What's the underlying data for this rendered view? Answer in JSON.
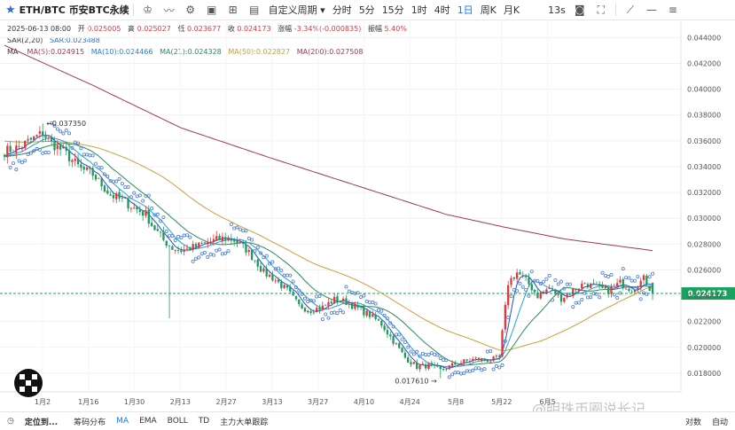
{
  "toolbar": {
    "symbol": "ETH/BTC 币安BTC永续",
    "custom_period": "自定义周期",
    "timeframes": [
      "分时",
      "5分",
      "15分",
      "1时",
      "4时",
      "1日",
      "周K",
      "月K"
    ],
    "active_timeframe": "1日",
    "refresh": "13s"
  },
  "info": {
    "date": "2025-06-13 08:00",
    "open_label": "开",
    "open": "0.025005",
    "high_label": "高",
    "high": "0.025027",
    "low_label": "低",
    "low": "0.023677",
    "close_label": "收",
    "close": "0.024173",
    "change_label": "涨幅",
    "change": "-3.34%(-0.000835)",
    "amp_label": "振幅",
    "amp": "5.40%",
    "sar_label": "SAR(2,20)",
    "sar_value": "SAR:0.023488",
    "ma_label": "MA",
    "ma5": "MA(5):0.024915",
    "ma10": "MA(10):0.024466",
    "ma21": "MA(21):0.024328",
    "ma50": "MA(50):0.022827",
    "ma200": "MA(200):0.027508"
  },
  "bottombar": {
    "locate": "定位到...",
    "items": [
      "筹码分布",
      "MA",
      "EMA",
      "BOLL",
      "TD",
      "主力大单跟踪"
    ],
    "active": "MA",
    "right1": "对数",
    "right2": "自动"
  },
  "watermark": "@明珠币圈说长记",
  "colors": {
    "up": "#e0383e",
    "down": "#1f9a5a",
    "ma5": "#1f4fd1",
    "ma10": "#2a9fd6",
    "ma21": "#2e8b57",
    "ma50": "#c9a13a",
    "ma200": "#a0394a",
    "sar": "#4a7fd6",
    "price_tag": "#19a15f"
  },
  "chart_data": {
    "type": "candlestick",
    "x_tick_labels": [
      "1月2",
      "1月16",
      "1月30",
      "2月13",
      "2月27",
      "3月13",
      "3月27",
      "4月10",
      "4月24",
      "5月8",
      "5月22",
      "6月5"
    ],
    "y_ticks": [
      0.018,
      0.02,
      0.022,
      0.024,
      0.026,
      0.028,
      0.03,
      0.032,
      0.034,
      0.036,
      0.038,
      0.04,
      0.042,
      0.044
    ],
    "y_tick_labels": [
      "0.018000",
      "0.020000",
      "0.022000",
      "0.024000",
      "0.026000",
      "0.028000",
      "0.030000",
      "0.032000",
      "0.034000",
      "0.036000",
      "0.038000",
      "0.040000",
      "0.042000",
      "0.044000"
    ],
    "ylim": [
      0.01655,
      0.0454
    ],
    "current_price": 0.024173,
    "current_price_label": "0.024173",
    "annotations": [
      {
        "text": "0.037350",
        "value": 0.03735
      },
      {
        "text": "0.017610",
        "value": 0.01761
      }
    ],
    "close_anchors": [
      [
        0,
        0.0352
      ],
      [
        5,
        0.0355
      ],
      [
        10,
        0.0362
      ],
      [
        13,
        0.0366
      ],
      [
        16,
        0.0358
      ],
      [
        20,
        0.0352
      ],
      [
        26,
        0.0338
      ],
      [
        30,
        0.0334
      ],
      [
        36,
        0.0318
      ],
      [
        40,
        0.0314
      ],
      [
        44,
        0.0308
      ],
      [
        48,
        0.0303
      ],
      [
        50,
        0.0295
      ],
      [
        54,
        0.0283
      ],
      [
        57,
        0.0277
      ],
      [
        60,
        0.0275
      ],
      [
        65,
        0.0278
      ],
      [
        70,
        0.0282
      ],
      [
        75,
        0.0285
      ],
      [
        78,
        0.0283
      ],
      [
        82,
        0.0276
      ],
      [
        85,
        0.0268
      ],
      [
        88,
        0.0258
      ],
      [
        91,
        0.0254
      ],
      [
        96,
        0.0244
      ],
      [
        100,
        0.0232
      ],
      [
        104,
        0.0229
      ],
      [
        108,
        0.0231
      ],
      [
        112,
        0.0237
      ],
      [
        116,
        0.0235
      ],
      [
        120,
        0.023
      ],
      [
        124,
        0.0225
      ],
      [
        128,
        0.0218
      ],
      [
        132,
        0.0205
      ],
      [
        136,
        0.0192
      ],
      [
        140,
        0.0185
      ],
      [
        144,
        0.0186
      ],
      [
        148,
        0.0182
      ],
      [
        150,
        0.0184
      ],
      [
        153,
        0.0187
      ],
      [
        156,
        0.0189
      ],
      [
        160,
        0.0191
      ],
      [
        165,
        0.019
      ],
      [
        168,
        0.0192
      ],
      [
        171,
        0.025
      ],
      [
        174,
        0.0258
      ],
      [
        177,
        0.0252
      ],
      [
        181,
        0.024
      ],
      [
        185,
        0.0246
      ],
      [
        189,
        0.0238
      ],
      [
        193,
        0.0244
      ],
      [
        197,
        0.025
      ],
      [
        201,
        0.0246
      ],
      [
        205,
        0.0244
      ],
      [
        209,
        0.025
      ],
      [
        213,
        0.0245
      ],
      [
        217,
        0.0253
      ],
      [
        218,
        0.025
      ],
      [
        220,
        0.024173
      ]
    ],
    "ma200_anchors": [
      [
        0,
        0.0434
      ],
      [
        30,
        0.0403
      ],
      [
        60,
        0.037
      ],
      [
        90,
        0.0347
      ],
      [
        120,
        0.0325
      ],
      [
        150,
        0.0303
      ],
      [
        170,
        0.0293
      ],
      [
        190,
        0.0284
      ],
      [
        220,
        0.0275
      ]
    ]
  }
}
